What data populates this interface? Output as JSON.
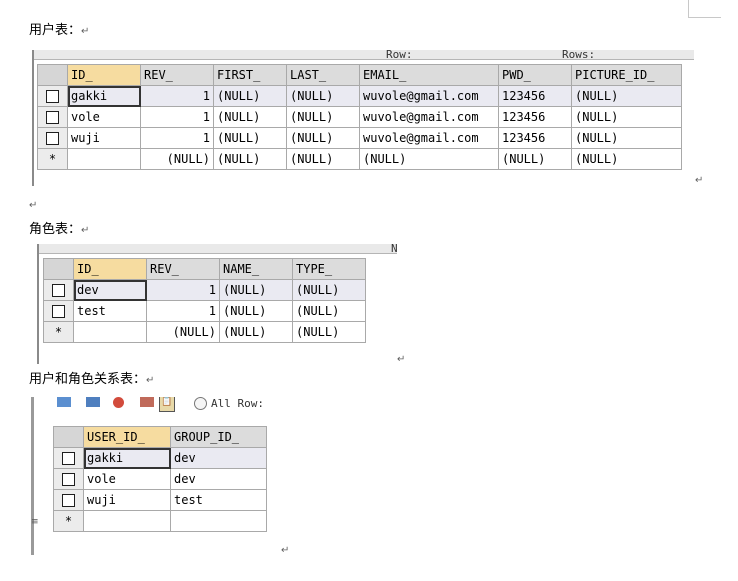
{
  "headings": {
    "user_table": "用户表：",
    "role_table": "角色表：",
    "relation_table": "用户和角色关系表："
  },
  "pilcrow": "↵",
  "user_grid": {
    "band_labels": [
      "Row:",
      "Rows:"
    ],
    "columns": [
      "ID_",
      "REV_",
      "FIRST_",
      "LAST_",
      "EMAIL_",
      "PWD_",
      "PICTURE_ID_"
    ],
    "rows": [
      [
        "gakki",
        "1",
        "(NULL)",
        "(NULL)",
        "wuvole@gmail.com",
        "123456",
        "(NULL)"
      ],
      [
        "vole",
        "1",
        "(NULL)",
        "(NULL)",
        "wuvole@gmail.com",
        "123456",
        "(NULL)"
      ],
      [
        "wuji",
        "1",
        "(NULL)",
        "(NULL)",
        "wuvole@gmail.com",
        "123456",
        "(NULL)"
      ]
    ],
    "new_row": [
      "",
      "(NULL)",
      "(NULL)",
      "(NULL)",
      "(NULL)",
      "(NULL)",
      "(NULL)"
    ],
    "new_row_marker": "*"
  },
  "role_grid": {
    "band_labels": [
      "N"
    ],
    "columns": [
      "ID_",
      "REV_",
      "NAME_",
      "TYPE_"
    ],
    "rows": [
      [
        "dev",
        "1",
        "(NULL)",
        "(NULL)"
      ],
      [
        "test",
        "1",
        "(NULL)",
        "(NULL)"
      ]
    ],
    "new_row": [
      "",
      "(NULL)",
      "(NULL)",
      "(NULL)"
    ],
    "new_row_marker": "*"
  },
  "relation_grid": {
    "toolbar_label": "All Row:",
    "toolbar_icons": [
      "grid-icon",
      "table-icon",
      "delete-icon",
      "refresh-icon",
      "paste-icon"
    ],
    "columns": [
      "USER_ID_",
      "GROUP_ID_"
    ],
    "rows": [
      [
        "gakki",
        "dev"
      ],
      [
        "vole",
        "dev"
      ],
      [
        "wuji",
        "test"
      ]
    ],
    "new_row": [
      "",
      ""
    ],
    "new_row_marker": "*"
  }
}
